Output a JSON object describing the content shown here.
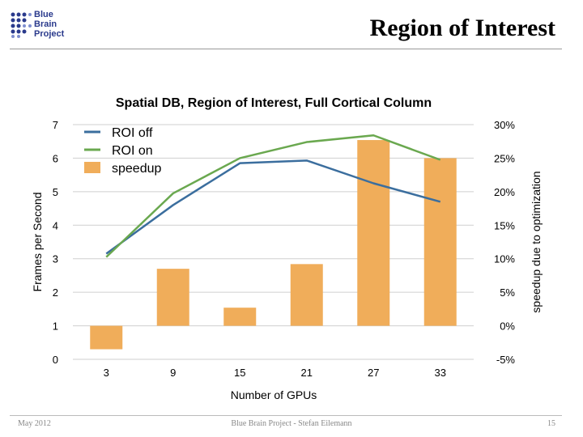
{
  "slide": {
    "title": "Region of Interest",
    "logo_lines": [
      "Blue",
      "Brain",
      "Project"
    ],
    "footer_left": "May 2012",
    "footer_center": "Blue Brain Project - Stefan Eilemann",
    "footer_right": "15"
  },
  "colors": {
    "roi_off": "#3b6e9e",
    "roi_on": "#6aa84f",
    "speedup": "#f0ad5a",
    "title_rule": "#999999"
  },
  "chart_data": {
    "type": "bar",
    "title": "Spatial DB, Region of Interest, Full Cortical Column",
    "xlabel": "Number of GPUs",
    "ylabel": "Frames per Second",
    "y2label": "speedup due to optimization",
    "categories": [
      "3",
      "9",
      "15",
      "21",
      "27",
      "33"
    ],
    "ylim": [
      0,
      7
    ],
    "yticks": [
      "0",
      "1",
      "2",
      "3",
      "4",
      "5",
      "6",
      "7"
    ],
    "y2lim": [
      -5,
      30
    ],
    "y2ticks": [
      "-5%",
      "0%",
      "5%",
      "10%",
      "15%",
      "20%",
      "25%",
      "30%"
    ],
    "legend_position": "top-left",
    "series": [
      {
        "name": "ROI off",
        "kind": "line",
        "axis": "left",
        "values": [
          3.15,
          4.6,
          5.85,
          5.93,
          5.25,
          4.7
        ]
      },
      {
        "name": "ROI on",
        "kind": "line",
        "axis": "left",
        "values": [
          3.05,
          4.95,
          6.0,
          6.48,
          6.68,
          5.95
        ]
      },
      {
        "name": "speedup",
        "kind": "bar",
        "axis": "right",
        "values": [
          -3.5,
          8.5,
          2.7,
          9.2,
          27.7,
          25.0
        ]
      }
    ]
  }
}
